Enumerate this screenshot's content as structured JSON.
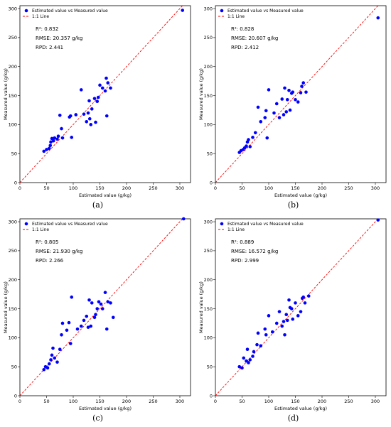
{
  "chart_data": [
    {
      "type": "scatter",
      "caption": "(a)",
      "xlabel": "Estimated value (g/kg)",
      "ylabel": "Measured value (g/kg)",
      "xlim": [
        0,
        320
      ],
      "ylim": [
        0,
        305
      ],
      "xticks": [
        0,
        50,
        100,
        150,
        200,
        250,
        300
      ],
      "yticks": [
        0,
        50,
        100,
        150,
        200,
        250,
        300
      ],
      "legend": {
        "position": "top-left",
        "points": "Estimated value vs Measured value",
        "line": "1:1 Line"
      },
      "stats": [
        "R²: 0.832",
        "RMSE: 20.357 g/kg",
        "RPD: 2.441"
      ],
      "colors": {
        "points": "#0000ff",
        "line": "#ff0000"
      },
      "x": [
        45,
        50,
        55,
        57,
        58,
        60,
        63,
        65,
        70,
        72,
        75,
        78,
        80,
        93,
        95,
        97,
        105,
        115,
        120,
        125,
        128,
        130,
        131,
        133,
        135,
        140,
        142,
        145,
        147,
        150,
        155,
        160,
        162,
        163,
        165,
        170,
        305
      ],
      "y": [
        54,
        57,
        59,
        64,
        70,
        76,
        72,
        77,
        75,
        80,
        116,
        93,
        77,
        113,
        115,
        78,
        117,
        160,
        118,
        105,
        120,
        141,
        110,
        100,
        127,
        145,
        104,
        140,
        147,
        168,
        163,
        158,
        180,
        115,
        172,
        163,
        297
      ]
    },
    {
      "type": "scatter",
      "caption": "(b)",
      "xlabel": "Estimated value (g/kg)",
      "ylabel": "Measured value (g/kg)",
      "xlim": [
        0,
        320
      ],
      "ylim": [
        0,
        305
      ],
      "xticks": [
        0,
        50,
        100,
        150,
        200,
        250,
        300
      ],
      "yticks": [
        0,
        50,
        100,
        150,
        200,
        250,
        300
      ],
      "legend": {
        "position": "top-left",
        "points": "Estimated value vs Measured value",
        "line": "1:1 Line"
      },
      "stats": [
        "R²: 0.828",
        "RMSE: 20.607 g/kg",
        "RPD: 2.412"
      ],
      "colors": {
        "points": "#0000ff",
        "line": "#ff0000"
      },
      "x": [
        45,
        48,
        52,
        55,
        58,
        60,
        62,
        65,
        70,
        75,
        80,
        85,
        93,
        95,
        97,
        100,
        110,
        115,
        120,
        125,
        128,
        130,
        133,
        135,
        138,
        140,
        143,
        145,
        150,
        155,
        160,
        162,
        165,
        170,
        305
      ],
      "y": [
        52,
        55,
        57,
        60,
        63,
        70,
        74,
        62,
        78,
        86,
        130,
        105,
        112,
        124,
        77,
        160,
        120,
        136,
        112,
        144,
        117,
        163,
        122,
        143,
        159,
        125,
        154,
        156,
        143,
        139,
        155,
        166,
        172,
        156,
        284
      ]
    },
    {
      "type": "scatter",
      "caption": "(c)",
      "xlabel": "Estimated value (g/kg)",
      "ylabel": "Measured value (g/kg)",
      "xlim": [
        0,
        320
      ],
      "ylim": [
        0,
        305
      ],
      "xticks": [
        0,
        50,
        100,
        150,
        200,
        250,
        300
      ],
      "yticks": [
        0,
        50,
        100,
        150,
        200,
        250,
        300
      ],
      "legend": {
        "position": "top-left",
        "points": "Estimated value vs Measured value",
        "line": "1:1 Line"
      },
      "stats": [
        "R²: 0.805",
        "RMSE: 21.930 g/kg",
        "RPD: 2.266"
      ],
      "colors": {
        "points": "#0000ff",
        "line": "#ff0000"
      },
      "x": [
        45,
        48,
        52,
        55,
        58,
        60,
        62,
        65,
        70,
        75,
        78,
        80,
        88,
        92,
        95,
        97,
        108,
        115,
        120,
        125,
        128,
        130,
        133,
        135,
        140,
        142,
        145,
        148,
        152,
        155,
        160,
        163,
        165,
        170,
        175,
        307
      ],
      "y": [
        45,
        50,
        48,
        55,
        62,
        70,
        82,
        65,
        58,
        80,
        105,
        125,
        113,
        126,
        90,
        170,
        115,
        120,
        130,
        137,
        118,
        165,
        120,
        160,
        135,
        140,
        150,
        162,
        158,
        150,
        178,
        115,
        162,
        160,
        135,
        305
      ]
    },
    {
      "type": "scatter",
      "caption": "(d)",
      "xlabel": "Estimated value (g/kg)",
      "ylabel": "Measured value (g/kg)",
      "xlim": [
        0,
        320
      ],
      "ylim": [
        0,
        305
      ],
      "xticks": [
        0,
        50,
        100,
        150,
        200,
        250,
        300
      ],
      "yticks": [
        0,
        50,
        100,
        150,
        200,
        250,
        300
      ],
      "legend": {
        "position": "top-left",
        "points": "Estimated value vs Measured value",
        "line": "1:1 Line"
      },
      "stats": [
        "R²: 0.889",
        "RMSE: 16.572 g/kg",
        "RPD: 2.999"
      ],
      "colors": {
        "points": "#0000ff",
        "line": "#ff0000"
      },
      "x": [
        45,
        50,
        53,
        58,
        60,
        62,
        65,
        70,
        72,
        78,
        80,
        85,
        93,
        95,
        100,
        107,
        115,
        120,
        125,
        128,
        130,
        133,
        135,
        138,
        140,
        143,
        145,
        150,
        155,
        160,
        163,
        165,
        168,
        175,
        305
      ],
      "y": [
        50,
        48,
        65,
        60,
        80,
        57,
        62,
        68,
        76,
        88,
        108,
        86,
        115,
        105,
        138,
        110,
        125,
        145,
        120,
        128,
        105,
        140,
        130,
        165,
        152,
        150,
        132,
        160,
        138,
        145,
        168,
        170,
        160,
        172,
        303
      ]
    }
  ]
}
